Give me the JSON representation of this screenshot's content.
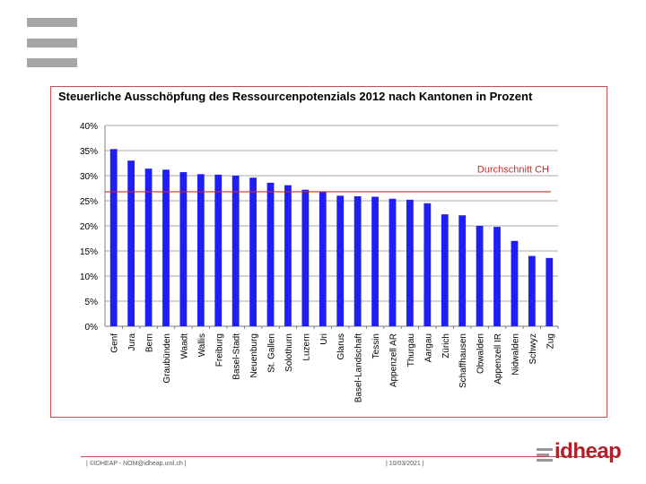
{
  "chart_data": {
    "type": "bar",
    "title": "Steuerliche Ausschöpfung des Ressourcenpotenzials 2012 nach Kantonen in Prozent",
    "categories": [
      "Genf",
      "Jura",
      "Bern",
      "Graubünden",
      "Waadt",
      "Wallis",
      "Freiburg",
      "Basel-Stadt",
      "Neuenburg",
      "St. Gallen",
      "Solothurn",
      "Luzern",
      "Uri",
      "Glarus",
      "Basel-Landschaft",
      "Tessin",
      "Appenzell AR",
      "Thurgau",
      "Aargau",
      "Zürich",
      "Schaffhausen",
      "Obwalden",
      "Appenzell IR",
      "Nidwalden",
      "Schwyz",
      "Zug"
    ],
    "values": [
      35.3,
      33.0,
      31.4,
      31.2,
      30.7,
      30.3,
      30.2,
      30.0,
      29.6,
      28.6,
      28.1,
      27.2,
      26.8,
      26.0,
      25.9,
      25.8,
      25.4,
      25.2,
      24.5,
      22.3,
      22.1,
      20.0,
      19.8,
      17.0,
      14.0,
      13.6
    ],
    "ylim": [
      0,
      40
    ],
    "yticks": [
      "0%",
      "5%",
      "10%",
      "15%",
      "20%",
      "25%",
      "30%",
      "35%",
      "40%"
    ],
    "grid": true,
    "bar_color": "#1f1ff5",
    "reference_line": {
      "label": "Durchschnitt CH",
      "value": 26.8,
      "color": "#cc2a2a"
    }
  },
  "footer": {
    "left": "©IDHEAP - NOM@idheap.unil.ch",
    "date": "10/03/2021"
  },
  "logo": {
    "text": "idheap",
    "color": "#b0202a"
  }
}
